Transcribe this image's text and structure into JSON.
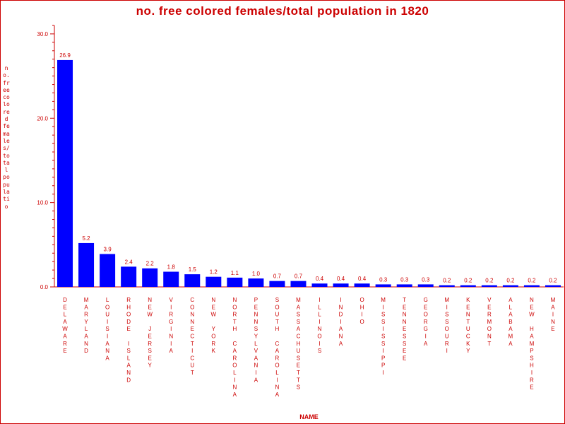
{
  "chart_data": {
    "type": "bar",
    "title": "no. free colored females/total population in 1820",
    "xlabel": "NAME",
    "ylabel": "no. free colored females/total populatio",
    "ylim": [
      0,
      31
    ],
    "yticks": [
      "0.0",
      "10.0",
      "20.0",
      "30.0"
    ],
    "categories": [
      "DELAWARE",
      "MARYLAND",
      "LOUISIANA",
      "RHODE ISLAND",
      "NEW JERSEY",
      "VIRGINIA",
      "CONNECTICUT",
      "NEW YORK",
      "NORTH CAROLINA",
      "PENNSYLVANIA",
      "SOUTH CAROLINA",
      "MASSACHUSETTS",
      "ILLINOIS",
      "INDIANA",
      "OHIO",
      "MISSISSIPPI",
      "TENNESSEE",
      "GEORGIA",
      "MISSOURI",
      "KENTUCKY",
      "VERMONT",
      "ALABAMA",
      "NEW HAMPSHIRE",
      "MAINE"
    ],
    "values": [
      26.9,
      5.2,
      3.9,
      2.4,
      2.2,
      1.8,
      1.5,
      1.2,
      1.1,
      1.0,
      0.7,
      0.7,
      0.4,
      0.4,
      0.4,
      0.3,
      0.3,
      0.3,
      0.2,
      0.2,
      0.2,
      0.2,
      0.2,
      0.2
    ],
    "value_labels": [
      "26.9",
      "5.2",
      "3.9",
      "2.4",
      "2.2",
      "1.8",
      "1.5",
      "1.2",
      "1.1",
      "1.0",
      "0.7",
      "0.7",
      "0.4",
      "0.4",
      "0.4",
      "0.3",
      "0.3",
      "0.3",
      "0.2",
      "0.2",
      "0.2",
      "0.2",
      "0.2",
      "0.2"
    ],
    "grid": false,
    "legend": "none",
    "colors": {
      "bar": "#0000ff",
      "text": "#cc0000",
      "axis": "#cc0000"
    }
  }
}
